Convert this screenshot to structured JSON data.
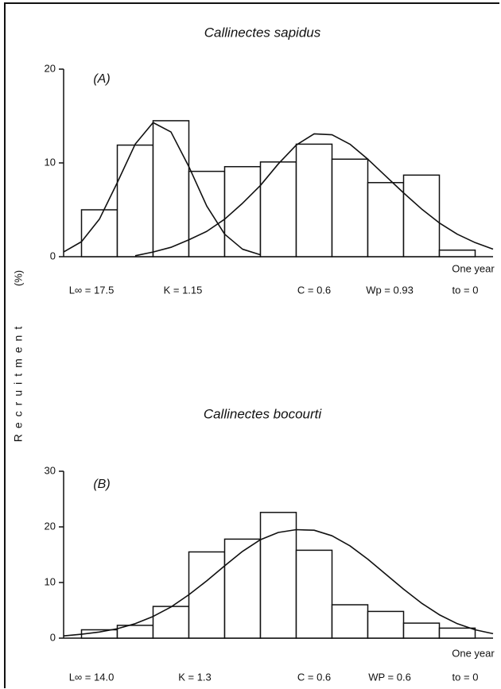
{
  "ylabel": "Recruitment",
  "yunit": "(%)",
  "chart_data": [
    {
      "type": "histogram",
      "title": "Callinectes sapidus",
      "panel_label": "(A)",
      "xlabel": "One year",
      "bins": [
        0,
        1,
        2,
        3,
        4,
        5,
        6,
        7,
        8,
        9,
        10,
        11
      ],
      "values": [
        5.0,
        11.9,
        14.5,
        9.1,
        9.6,
        10.1,
        12.0,
        10.4,
        7.9,
        8.7,
        0.7
      ],
      "color": "#ffffff",
      "xlim": [
        -0.5,
        11.5
      ],
      "ylim": [
        0,
        20
      ],
      "yticks": [
        0,
        10,
        20
      ],
      "curves": [
        {
          "x": [
            -0.5,
            0,
            0.5,
            1,
            1.5,
            2,
            2.5,
            3,
            3.5,
            4,
            4.5,
            5
          ],
          "values": [
            0.5,
            1.6,
            4.0,
            7.9,
            12.0,
            14.3,
            13.3,
            9.6,
            5.4,
            2.4,
            0.8,
            0.2
          ]
        },
        {
          "x": [
            1.5,
            2,
            2.5,
            3,
            3.5,
            4,
            4.5,
            5,
            5.5,
            6,
            6.5,
            7,
            7.5,
            8,
            8.5,
            9,
            9.5,
            10,
            10.5,
            11,
            11.5
          ],
          "values": [
            0.1,
            0.5,
            1.0,
            1.8,
            2.7,
            4.0,
            5.7,
            7.6,
            9.9,
            11.9,
            13.1,
            13.0,
            12.0,
            10.4,
            8.6,
            6.8,
            5.1,
            3.6,
            2.4,
            1.5,
            0.8
          ]
        }
      ],
      "parameters": [
        "L∞ = 17.5",
        "K = 1.15",
        "C = 0.6",
        "Wp = 0.93",
        "to = 0"
      ]
    },
    {
      "type": "histogram",
      "title": "Callinectes bocourti",
      "panel_label": "(B)",
      "xlabel": "One year",
      "bins": [
        0,
        1,
        2,
        3,
        4,
        5,
        6,
        7,
        8,
        9,
        10,
        11
      ],
      "values": [
        1.5,
        2.3,
        5.7,
        15.5,
        17.8,
        22.6,
        15.8,
        6.0,
        4.8,
        2.7,
        1.8
      ],
      "color": "#ffffff",
      "xlim": [
        -0.5,
        11.5
      ],
      "ylim": [
        0,
        30
      ],
      "yticks": [
        0,
        10,
        20,
        30
      ],
      "curves": [
        {
          "x": [
            -0.5,
            0,
            0.5,
            1,
            1.5,
            2,
            2.5,
            3,
            3.5,
            4,
            4.5,
            5,
            5.5,
            6,
            6.5,
            7,
            7.5,
            8,
            8.5,
            9,
            9.5,
            10,
            10.5,
            11,
            11.5
          ],
          "values": [
            0.4,
            0.7,
            1.1,
            1.7,
            2.6,
            3.9,
            5.6,
            7.8,
            10.3,
            13.0,
            15.6,
            17.7,
            19.0,
            19.5,
            19.4,
            18.4,
            16.6,
            14.2,
            11.5,
            8.8,
            6.3,
            4.2,
            2.6,
            1.5,
            0.8
          ]
        }
      ],
      "parameters": [
        "L∞ = 14.0",
        "K = 1.3",
        "C = 0.6",
        "WP = 0.6",
        "to = 0"
      ]
    }
  ]
}
